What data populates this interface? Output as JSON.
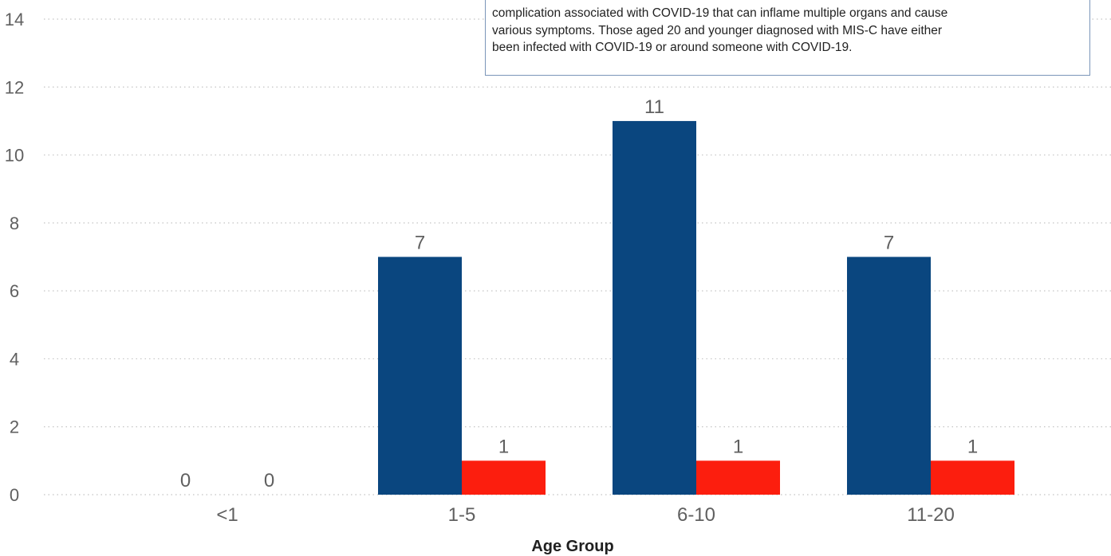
{
  "colors": {
    "series_primary": "#0a467f",
    "series_secondary": "#fc1e0e",
    "grid": "#c4c4c4",
    "text": "#606060",
    "axis_title": "#202020"
  },
  "tooltip": {
    "lines": [
      "complication associated with COVID-19 that can inflame multiple organs and cause",
      "various symptoms. Those aged 20 and younger diagnosed with MIS-C have either",
      "been infected with COVID-19 or around someone with COVID-19."
    ]
  },
  "chart_data": {
    "type": "bar",
    "categories": [
      "<1",
      "1-5",
      "6-10",
      "11-20"
    ],
    "series": [
      {
        "values": [
          0,
          7,
          11,
          7
        ],
        "color": "#0a467f"
      },
      {
        "values": [
          0,
          1,
          1,
          1
        ],
        "color": "#fc1e0e"
      }
    ],
    "xlabel": "Age Group",
    "ylabel": "",
    "ylim": [
      0,
      14
    ],
    "yticks": [
      0,
      2,
      4,
      6,
      8,
      10,
      12,
      14
    ],
    "grid": true,
    "grid_style": "dotted",
    "data_labels": true
  }
}
